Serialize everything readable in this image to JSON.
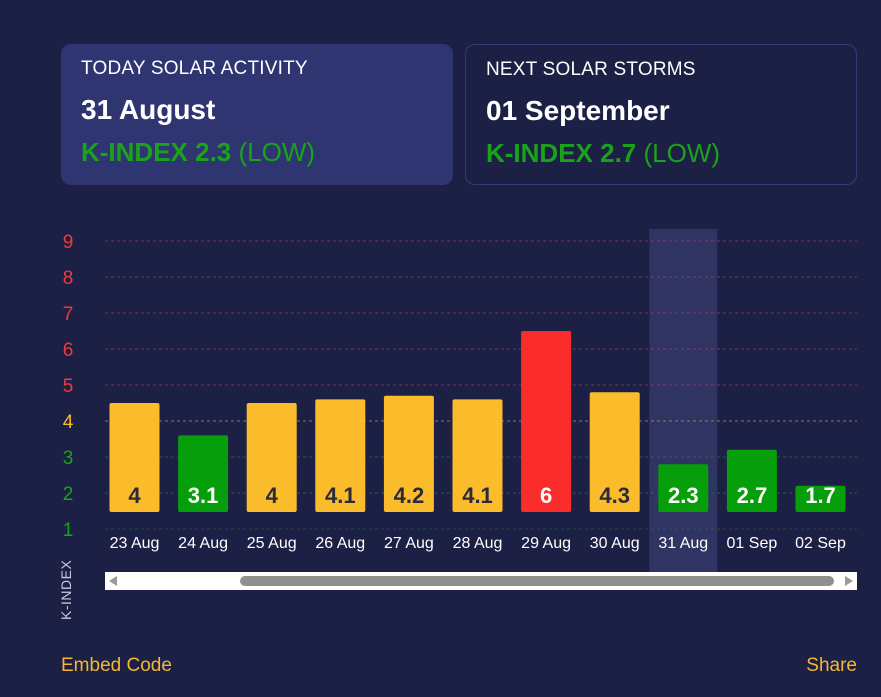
{
  "cards": {
    "today": {
      "title": "TODAY SOLAR ACTIVITY",
      "date": "31 August",
      "kindex": "K-INDEX 2.3",
      "level": "(LOW)"
    },
    "next": {
      "title": "NEXT SOLAR STORMS",
      "date": "01 September",
      "kindex": "K-INDEX 2.7",
      "level": "(LOW)"
    }
  },
  "chart_data": {
    "type": "bar",
    "categories": [
      "23 Aug",
      "24 Aug",
      "25 Aug",
      "26 Aug",
      "27 Aug",
      "28 Aug",
      "29 Aug",
      "30 Aug",
      "31 Aug",
      "01 Sep",
      "02 Sep"
    ],
    "values": [
      4,
      3.1,
      4,
      4.1,
      4.2,
      4.1,
      6,
      4.3,
      2.3,
      2.7,
      1.7
    ],
    "labels": [
      "4",
      "3.1",
      "4",
      "4.1",
      "4.2",
      "4.1",
      "6",
      "4.3",
      "2.3",
      "2.7",
      "1.7"
    ],
    "bar_colors": [
      "#fbbc2c",
      "#079e0b",
      "#fbbc2c",
      "#fbbc2c",
      "#fbbc2c",
      "#fbbc2c",
      "#fb2c2c",
      "#fbbc2c",
      "#079e0b",
      "#079e0b",
      "#079e0b"
    ],
    "highlight_index": 8,
    "ylabel": "K-INDEX",
    "yticks": [
      "1",
      "2",
      "3",
      "4",
      "5",
      "6",
      "7",
      "8",
      "9"
    ],
    "ytick_colors": [
      "#1aa31a",
      "#1aa31a",
      "#1aa31a",
      "#fbbc2c",
      "#f03a3a",
      "#f03a3a",
      "#f03a3a",
      "#f03a3a",
      "#f03a3a"
    ],
    "ylim": [
      1,
      9
    ],
    "grid": true
  },
  "footer": {
    "embed": "Embed Code",
    "share": "Share"
  },
  "colors": {
    "background": "#1c2045",
    "accent": "#f5b733",
    "low": "#1aa31a",
    "storm": "#fb2c2c"
  }
}
